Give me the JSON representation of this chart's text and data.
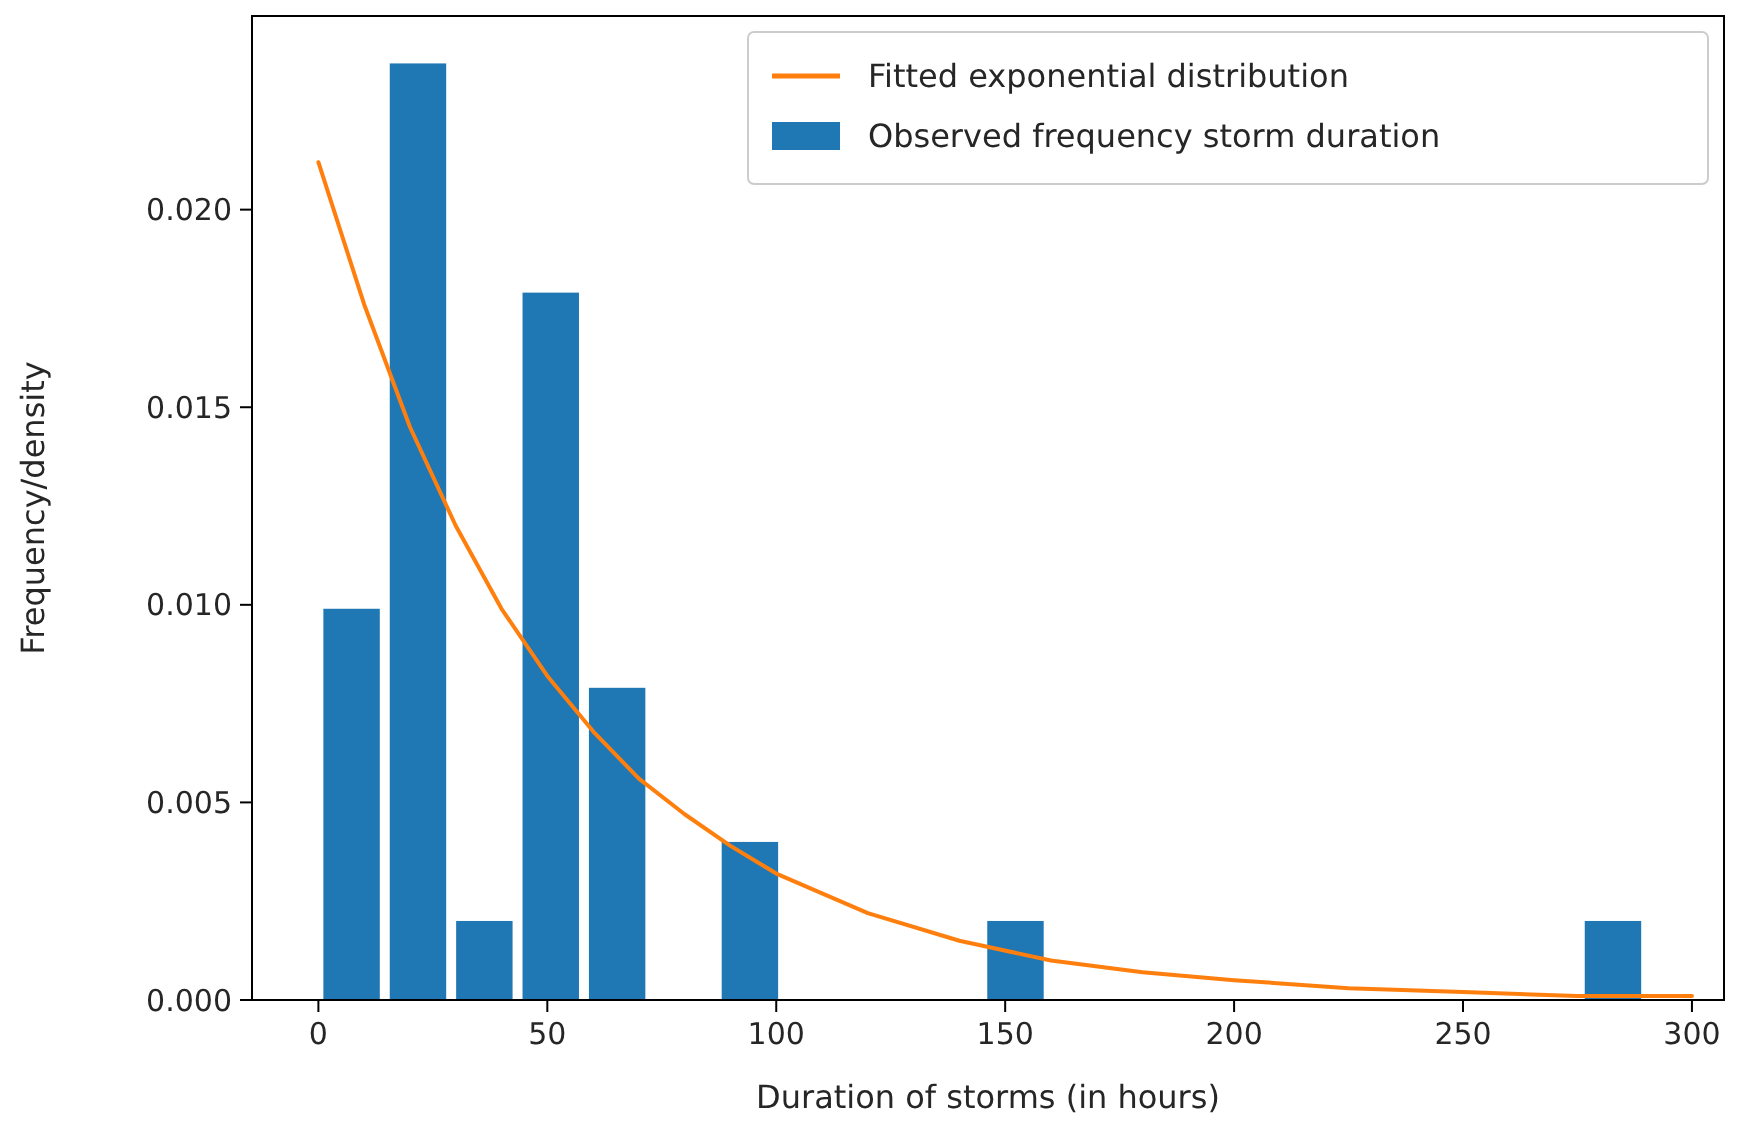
{
  "chart_data": {
    "type": "histogram",
    "xlabel": "Duration of storms (in hours)",
    "ylabel": "Frequency/density",
    "bins": [
      0,
      14.5,
      29,
      43.5,
      58,
      72.5,
      87,
      101.5,
      116,
      130.5,
      145,
      159.5,
      174,
      188.5,
      203,
      217.5,
      232,
      246.5,
      261,
      275.5,
      290
    ],
    "series": [
      {
        "type": "line",
        "name": "Fitted exponential distribution",
        "color": "#ff7f0e",
        "x": [
          0,
          10,
          20,
          30,
          40,
          50,
          60,
          70,
          80,
          90,
          100,
          120,
          140,
          160,
          180,
          200,
          225,
          250,
          275,
          300
        ],
        "values": [
          0.0212,
          0.0176,
          0.0145,
          0.012,
          0.0099,
          0.0082,
          0.0068,
          0.0056,
          0.0047,
          0.0039,
          0.0032,
          0.0022,
          0.0015,
          0.001,
          0.0007,
          0.0005,
          0.0003,
          0.0002,
          0.0001,
          0.0001
        ]
      },
      {
        "name": "Observed frequency storm duration",
        "color": "#1f77b4",
        "values": [
          0.0099,
          0.0237,
          0.002,
          0.0179,
          0.0079,
          0,
          0.004,
          0,
          0,
          0,
          0.002,
          0,
          0,
          0,
          0,
          0,
          0,
          0,
          0,
          0.002
        ]
      }
    ],
    "xlim": [
      -14.5,
      307
    ],
    "ylim": [
      0,
      0.0249
    ],
    "xticks": [
      0,
      50,
      100,
      150,
      200,
      250,
      300
    ],
    "yticks": [
      {
        "value": 0,
        "label": "0.000"
      },
      {
        "value": 0.005,
        "label": "0.005"
      },
      {
        "value": 0.01,
        "label": "0.010"
      },
      {
        "value": 0.015,
        "label": "0.015"
      },
      {
        "value": 0.02,
        "label": "0.020"
      }
    ],
    "grid": false,
    "legend": "top right"
  }
}
